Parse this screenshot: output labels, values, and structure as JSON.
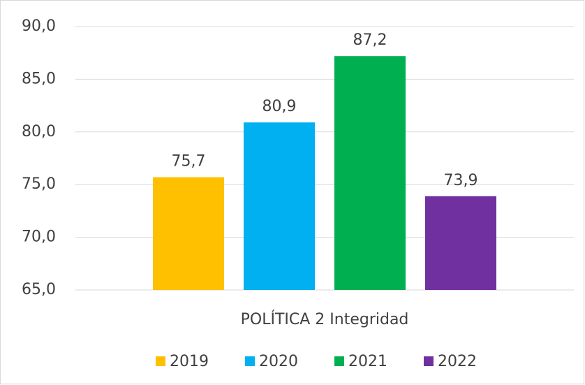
{
  "chart_data": {
    "type": "bar",
    "categories": [
      "POLÍTICA 2 Integridad"
    ],
    "series": [
      {
        "name": "2019",
        "color": "#FFC000",
        "values": [
          75.7
        ],
        "value_labels": [
          "75,7"
        ]
      },
      {
        "name": "2020",
        "color": "#00B0F0",
        "values": [
          80.9
        ],
        "value_labels": [
          "80,9"
        ]
      },
      {
        "name": "2021",
        "color": "#00B050",
        "values": [
          87.2
        ],
        "value_labels": [
          "87,2"
        ]
      },
      {
        "name": "2022",
        "color": "#7030A0",
        "values": [
          73.9
        ],
        "value_labels": [
          "73,9"
        ]
      }
    ],
    "ylim": [
      65,
      90
    ],
    "yticks": [
      {
        "value": 65,
        "label": "65,0"
      },
      {
        "value": 70,
        "label": "70,0"
      },
      {
        "value": 75,
        "label": "75,0"
      },
      {
        "value": 80,
        "label": "80,0"
      },
      {
        "value": 85,
        "label": "85,0"
      },
      {
        "value": 90,
        "label": "90,0"
      }
    ],
    "grid": true,
    "legend": "bottom"
  }
}
